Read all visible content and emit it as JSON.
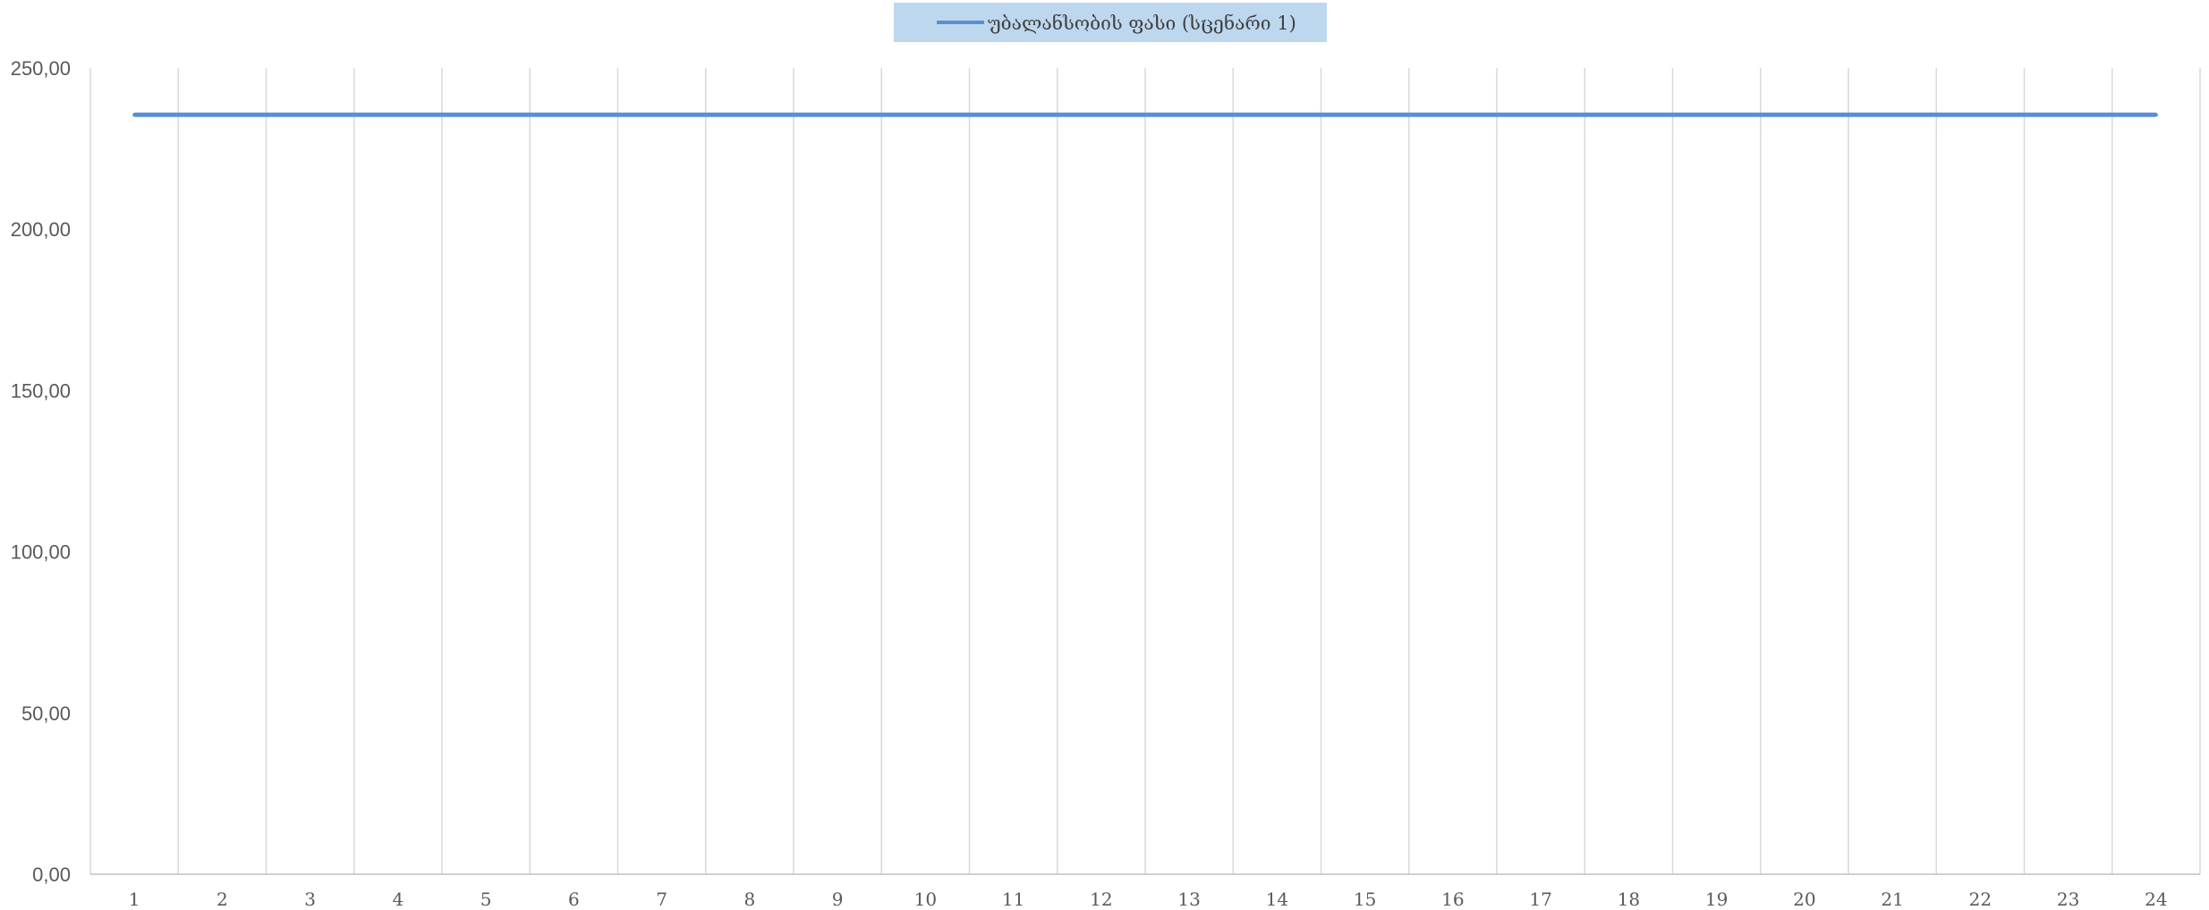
{
  "chart_data": {
    "type": "line",
    "x": [
      "1",
      "2",
      "3",
      "4",
      "5",
      "6",
      "7",
      "8",
      "9",
      "10",
      "11",
      "12",
      "13",
      "14",
      "15",
      "16",
      "17",
      "18",
      "19",
      "20",
      "21",
      "22",
      "23",
      "24"
    ],
    "series": [
      {
        "name": "უბალანსობის ფასი (სცენარი 1)",
        "values": [
          235.5,
          235.5,
          235.5,
          235.5,
          235.5,
          235.5,
          235.5,
          235.5,
          235.5,
          235.5,
          235.5,
          235.5,
          235.5,
          235.5,
          235.5,
          235.5,
          235.5,
          235.5,
          235.5,
          235.5,
          235.5,
          235.5,
          235.5,
          235.5
        ]
      }
    ],
    "y_ticks": [
      "0,00",
      "50,00",
      "100,00",
      "150,00",
      "200,00",
      "250,00"
    ],
    "ylim": [
      0,
      250
    ],
    "grid": "vertical",
    "legend_position": "top-center",
    "colors": {
      "series": "#5B8FD4",
      "legend_bg": "#BDD7EE",
      "grid": "#D9D9D9",
      "axis": "#BFBFBF"
    }
  }
}
